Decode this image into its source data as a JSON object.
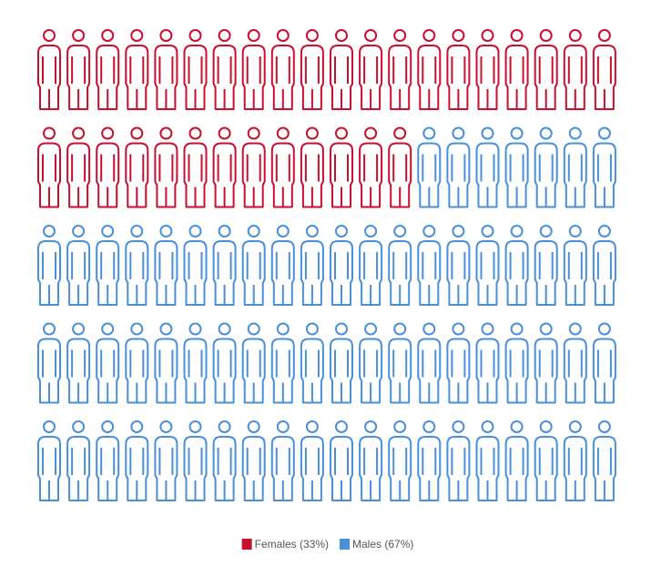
{
  "chart_data": {
    "type": "pictogram",
    "categories": [
      "Females (33%)",
      "Males (67%)"
    ],
    "values": [
      33,
      67
    ],
    "colors": [
      "#c8102e",
      "#4a90d9"
    ]
  }
}
